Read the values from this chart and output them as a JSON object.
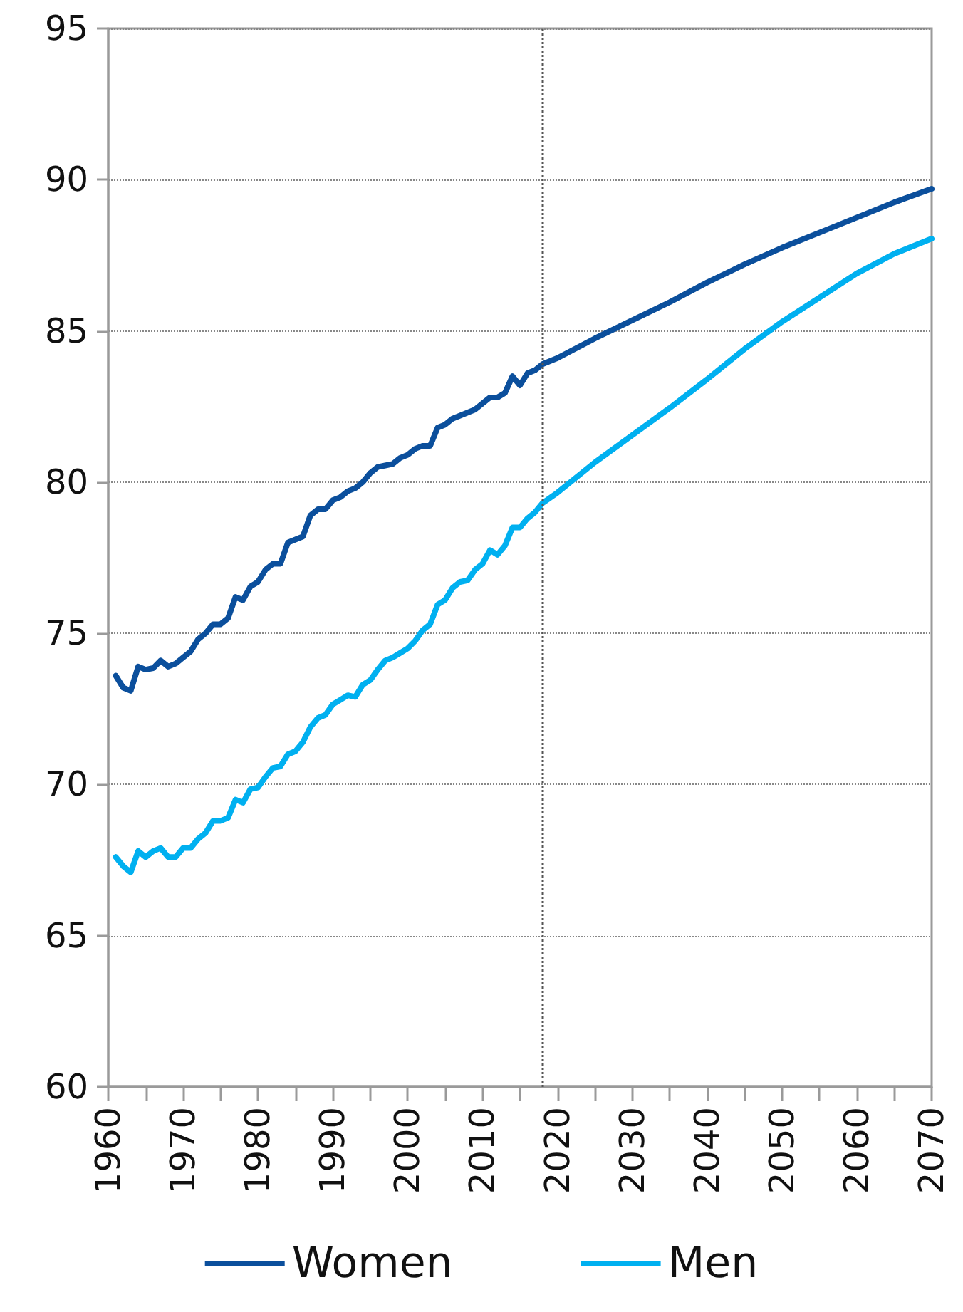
{
  "chart_data": {
    "type": "line",
    "x": [
      1961,
      1962,
      1963,
      1964,
      1965,
      1966,
      1967,
      1968,
      1969,
      1970,
      1971,
      1972,
      1973,
      1974,
      1975,
      1976,
      1977,
      1978,
      1979,
      1980,
      1981,
      1982,
      1983,
      1984,
      1985,
      1986,
      1987,
      1988,
      1989,
      1990,
      1991,
      1992,
      1993,
      1994,
      1995,
      1996,
      1997,
      1998,
      1999,
      2000,
      2001,
      2002,
      2003,
      2004,
      2005,
      2006,
      2007,
      2008,
      2009,
      2010,
      2011,
      2012,
      2013,
      2014,
      2015,
      2016,
      2017,
      2018,
      2020,
      2025,
      2030,
      2035,
      2040,
      2045,
      2050,
      2055,
      2060,
      2065,
      2070
    ],
    "series": [
      {
        "name": "Women",
        "color": "#0b4f9c",
        "values": [
          73.6,
          73.2,
          73.1,
          73.9,
          73.8,
          73.85,
          74.1,
          73.9,
          74.0,
          74.2,
          74.4,
          74.8,
          75.0,
          75.3,
          75.3,
          75.5,
          76.2,
          76.1,
          76.55,
          76.7,
          77.1,
          77.3,
          77.3,
          78.0,
          78.1,
          78.2,
          78.9,
          79.1,
          79.1,
          79.4,
          79.5,
          79.7,
          79.8,
          80.0,
          80.3,
          80.5,
          80.55,
          80.6,
          80.8,
          80.9,
          81.1,
          81.2,
          81.2,
          81.8,
          81.9,
          82.1,
          82.2,
          82.3,
          82.4,
          82.6,
          82.8,
          82.8,
          82.95,
          83.5,
          83.2,
          83.6,
          83.7,
          83.9,
          84.1,
          84.75,
          85.35,
          85.95,
          86.6,
          87.2,
          87.75,
          88.25,
          88.75,
          89.25,
          89.7
        ]
      },
      {
        "name": "Men",
        "color": "#00b0f0",
        "values": [
          67.6,
          67.3,
          67.1,
          67.8,
          67.6,
          67.8,
          67.9,
          67.6,
          67.6,
          67.9,
          67.9,
          68.2,
          68.4,
          68.8,
          68.8,
          68.9,
          69.5,
          69.4,
          69.85,
          69.9,
          70.25,
          70.55,
          70.6,
          71.0,
          71.1,
          71.4,
          71.9,
          72.2,
          72.3,
          72.65,
          72.8,
          72.95,
          72.9,
          73.3,
          73.45,
          73.8,
          74.1,
          74.2,
          74.35,
          74.5,
          74.75,
          75.1,
          75.3,
          75.95,
          76.1,
          76.5,
          76.7,
          76.75,
          77.1,
          77.3,
          77.75,
          77.6,
          77.9,
          78.5,
          78.5,
          78.8,
          79.0,
          79.3,
          79.65,
          80.65,
          81.55,
          82.45,
          83.4,
          84.4,
          85.3,
          86.1,
          86.9,
          87.55,
          88.05
        ]
      }
    ],
    "xlim": [
      1960,
      2070
    ],
    "xticks": [
      1960,
      {
        "value": 1965,
        "label": null
      },
      1970,
      {
        "value": 1975,
        "label": null
      },
      1980,
      {
        "value": 1985,
        "label": null
      },
      1990,
      {
        "value": 1995,
        "label": null
      },
      2000,
      {
        "value": 2005,
        "label": null
      },
      2010,
      {
        "value": 2015,
        "label": null
      },
      2020,
      {
        "value": 2025,
        "label": null
      },
      2030,
      {
        "value": 2035,
        "label": null
      },
      2040,
      {
        "value": 2045,
        "label": null
      },
      2050,
      {
        "value": 2055,
        "label": null
      },
      2060,
      {
        "value": 2065,
        "label": null
      },
      2070
    ],
    "ylim": [
      60,
      95
    ],
    "yticks": [
      60,
      65,
      70,
      75,
      80,
      85,
      90,
      95
    ],
    "grid": "y",
    "legend": "bottom",
    "marker": "none",
    "line_style": "solid",
    "ref_lines": [
      {
        "axis": "x",
        "value": 2018,
        "label": null,
        "color": "#555555",
        "line_style": "dotted"
      }
    ]
  }
}
